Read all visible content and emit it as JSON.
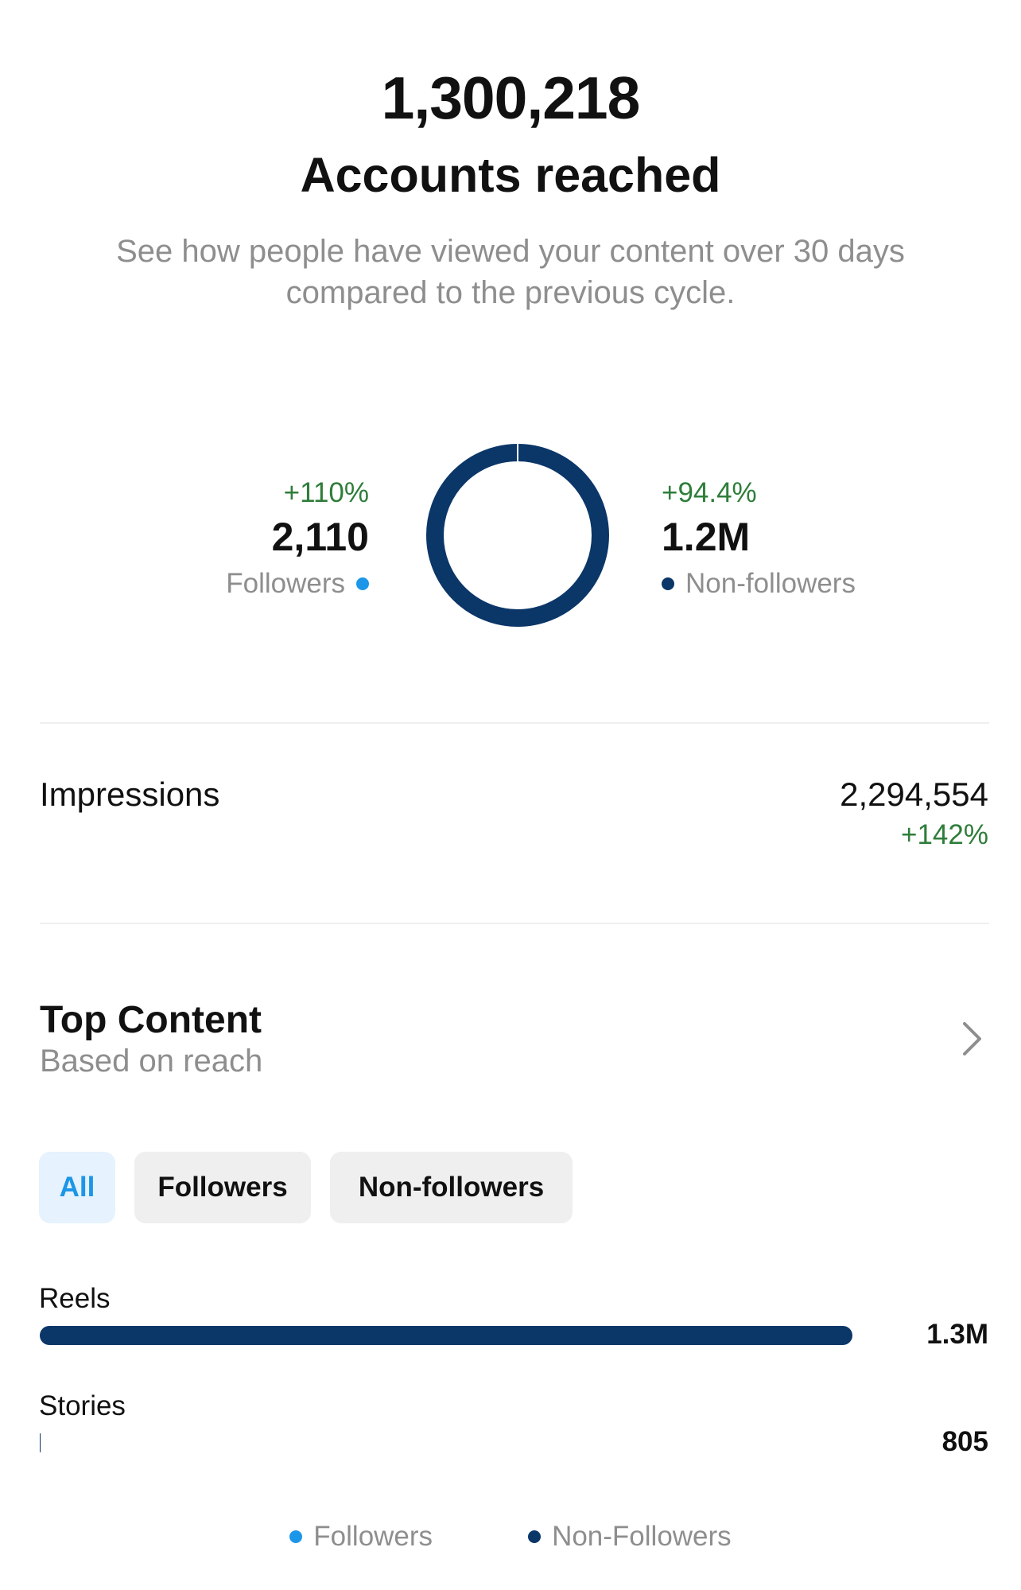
{
  "summary": {
    "total": "1,300,218",
    "headline": "Accounts reached",
    "description": "See how people have viewed your content over 30 days compared to the previous cycle."
  },
  "audience": {
    "followers": {
      "change": "+110%",
      "value": "2,110",
      "label": "Followers"
    },
    "non_followers": {
      "change": "+94.4%",
      "value": "1.2M",
      "label": "Non-followers"
    },
    "donut_share": {
      "followers_fraction": 0.0016,
      "non_followers_fraction": 0.9984
    }
  },
  "impressions": {
    "label": "Impressions",
    "value": "2,294,554",
    "change": "+142%"
  },
  "top_content": {
    "title": "Top Content",
    "subtitle": "Based on reach",
    "chevron_icon": "chevron-right-icon",
    "filters": [
      {
        "label": "All",
        "selected": true
      },
      {
        "label": "Followers",
        "selected": false
      },
      {
        "label": "Non-followers",
        "selected": false
      }
    ],
    "categories": [
      {
        "label": "Reels",
        "value": "1.3M",
        "fraction": 1.0
      },
      {
        "label": "Stories",
        "value": "805",
        "fraction": 0.0006
      }
    ]
  },
  "legend": {
    "followers": "Followers",
    "non_followers": "Non-Followers"
  },
  "colors": {
    "followers": "#1c96e8",
    "non_followers": "#0b3668",
    "positive_change": "#2f7d3a",
    "muted_text": "#8e8e8e"
  }
}
